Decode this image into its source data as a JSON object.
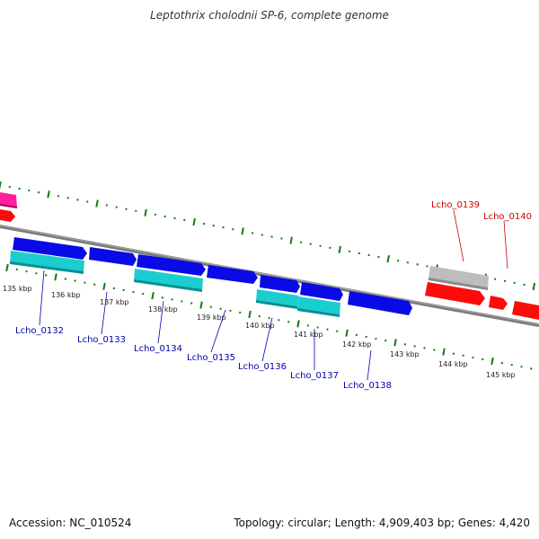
{
  "title": "Leptothrix cholodnii SP-6, complete genome",
  "footer": {
    "accession": "Accession: NC_010524",
    "stats": "Topology: circular; Length: 4,909,403 bp; Genes: 4,420"
  },
  "colors": {
    "forward_gene": "#0a0ae6",
    "reverse_gene": "#1ccdd0",
    "highlight_gene": "#ff0a0a",
    "pseudo_gene": "#bdbdbd",
    "rna_gene": "#ff1f9e",
    "backbone": "#808080",
    "ticks": "#137a13",
    "label_blue": "#0000aa",
    "label_red": "#cc0000"
  },
  "scale_labels": [
    "135 kbp",
    "136 kbp",
    "137 kbp",
    "138 kbp",
    "139 kbp",
    "140 kbp",
    "141 kbp",
    "142 kbp",
    "143 kbp",
    "144 kbp",
    "145 kbp"
  ],
  "gene_labels": [
    {
      "text": "Lcho_0132",
      "color": "blue"
    },
    {
      "text": "Lcho_0133",
      "color": "blue"
    },
    {
      "text": "Lcho_0134",
      "color": "blue"
    },
    {
      "text": "Lcho_0135",
      "color": "blue"
    },
    {
      "text": "Lcho_0136",
      "color": "blue"
    },
    {
      "text": "Lcho_0137",
      "color": "blue"
    },
    {
      "text": "Lcho_0138",
      "color": "blue"
    },
    {
      "text": "Lcho_0139",
      "color": "red"
    },
    {
      "text": "Lcho_0140",
      "color": "red"
    }
  ]
}
